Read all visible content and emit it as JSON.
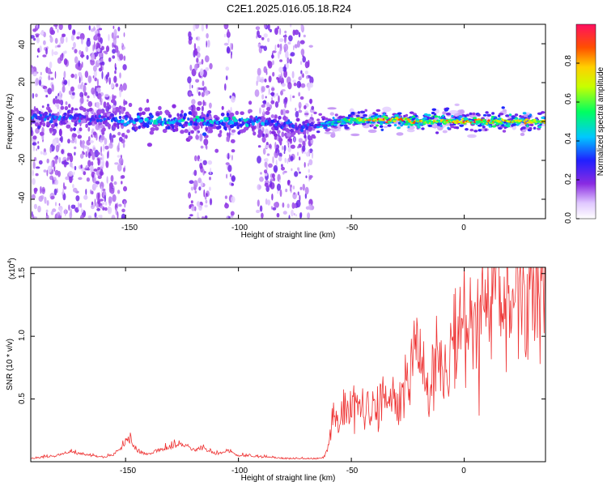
{
  "title": "C2E1.2025.016.05.18.R24",
  "spectrogram": {
    "ylabel": "Frequency (Hz)",
    "xlabel": "Height of straight line (km)",
    "x_ticks": [
      "-150",
      "-100",
      "-50",
      "0"
    ],
    "y_ticks": [
      "40",
      "20",
      "0",
      "-20",
      "-40"
    ],
    "colorbar": {
      "label": "Normalized spectral amplitude",
      "ticks": [
        "0.0",
        "0.2",
        "0.4",
        "0.6",
        "0.8"
      ]
    }
  },
  "snr": {
    "ylabel": "SNR (10 * v/v)",
    "xlabel": "Height of straight line (km)",
    "scale_label": "(x10",
    "scale_exp": "4",
    "scale_close": ")",
    "x_ticks": [
      "-150",
      "-100",
      "-50",
      "0"
    ],
    "y_ticks": [
      "1.5",
      "1.0",
      "0.5"
    ]
  },
  "chart_data": [
    {
      "type": "heatmap",
      "title": "C2E1.2025.016.05.18.R24",
      "xlabel": "Height of straight line (km)",
      "ylabel": "Frequency (Hz)",
      "xlim": [
        -192,
        36
      ],
      "ylim": [
        -50,
        50
      ],
      "colorbar_label": "Normalized spectral amplitude",
      "colorbar_range": [
        0,
        1
      ],
      "colormap": [
        "#ffffff",
        "#8a2be2",
        "#2020ff",
        "#00c8ff",
        "#00ff60",
        "#ffff00",
        "#ff8000",
        "#ff0000",
        "#ff1060"
      ],
      "noise_bands_km": [
        [
          -192,
          -160
        ],
        [
          -165,
          -150
        ],
        [
          -122,
          -112
        ],
        [
          -106,
          -102
        ],
        [
          -92,
          -67
        ]
      ],
      "signal_track": {
        "x": [
          -190,
          -170,
          -160,
          -140,
          -120,
          -100,
          -95,
          -67,
          -60,
          -50,
          -40,
          -30,
          -20,
          -10,
          0,
          10,
          20,
          36
        ],
        "freq_hz": [
          2,
          2,
          1,
          0,
          0,
          -1,
          0,
          -3,
          -1,
          1,
          1,
          1,
          0,
          0,
          0,
          0,
          0,
          0
        ],
        "strength": [
          0.35,
          0.35,
          0.3,
          0.45,
          0.45,
          0.45,
          0.4,
          0.3,
          0.5,
          0.7,
          0.8,
          0.85,
          0.8,
          0.8,
          0.85,
          0.8,
          0.75,
          0.75
        ]
      }
    },
    {
      "type": "line",
      "title": "",
      "xlabel": "Height of straight line (km)",
      "ylabel": "SNR (10 * v/v)",
      "y_scale_note": "x10^4",
      "xlim": [
        -192,
        36
      ],
      "ylim": [
        0,
        1.55
      ],
      "color": "#ee3333",
      "series": [
        {
          "x": [
            -192,
            -180,
            -175,
            -170,
            -160,
            -155,
            -150,
            -148,
            -145,
            -140,
            -135,
            -130,
            -125,
            -120,
            -115,
            -110,
            -105,
            -100,
            -95,
            -90,
            -85,
            -80,
            -75,
            -70,
            -65,
            -62,
            -60,
            -58,
            -55,
            -53,
            -50,
            -48,
            -45,
            -42,
            -40,
            -38,
            -35,
            -32,
            -30,
            -28,
            -26,
            -24,
            -22,
            -20,
            -18,
            -16,
            -14,
            -12,
            -10,
            -8,
            -6,
            -4,
            -2,
            0,
            2,
            4,
            6,
            8,
            10,
            12,
            14,
            16,
            18,
            20,
            22,
            24,
            26,
            28,
            30,
            32,
            34,
            36
          ],
          "values": [
            0.02,
            0.04,
            0.07,
            0.05,
            0.03,
            0.05,
            0.12,
            0.15,
            0.07,
            0.05,
            0.08,
            0.1,
            0.12,
            0.08,
            0.09,
            0.05,
            0.08,
            0.04,
            0.04,
            0.03,
            0.03,
            0.02,
            0.02,
            0.02,
            0.02,
            0.03,
            0.15,
            0.35,
            0.3,
            0.45,
            0.4,
            0.5,
            0.42,
            0.38,
            0.45,
            0.4,
            0.5,
            0.55,
            0.45,
            0.58,
            0.62,
            0.68,
            0.95,
            0.8,
            0.7,
            0.55,
            0.75,
            0.82,
            0.78,
            0.8,
            0.92,
            0.95,
            1.0,
            1.05,
            1.0,
            1.18,
            1.15,
            1.22,
            1.1,
            1.2,
            1.28,
            1.3,
            1.25,
            1.32,
            1.35,
            1.28,
            1.35,
            1.38,
            1.3,
            1.4,
            1.35,
            1.28
          ]
        }
      ]
    }
  ]
}
